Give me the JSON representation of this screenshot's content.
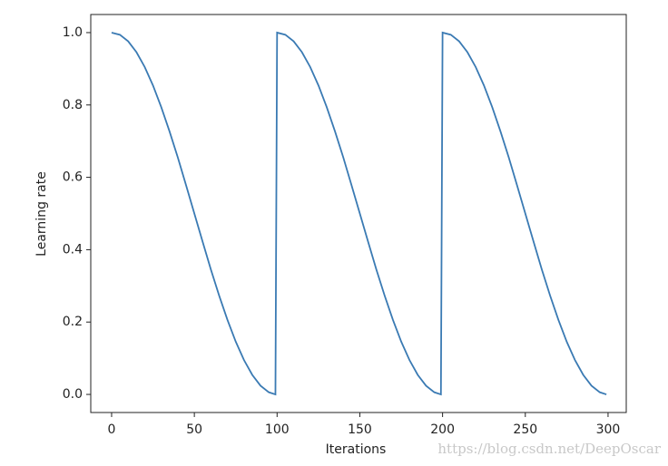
{
  "chart_data": {
    "type": "line",
    "xlabel": "Iterations",
    "ylabel": "Learning rate",
    "annotation": "https://blog.csdn.net/DeepOscar",
    "xlim": [
      -12.6,
      311
    ],
    "ylim": [
      -0.05,
      1.05
    ],
    "xticks": [
      0,
      50,
      100,
      150,
      200,
      250,
      300
    ],
    "yticks": [
      {
        "value": 0,
        "label": "0.0"
      },
      0.2,
      0.4,
      0.6,
      0.8,
      {
        "value": 1,
        "label": "1.0"
      }
    ],
    "series": [
      {
        "color": "#3a7ab3",
        "x": [
          0,
          5,
          10,
          15,
          20,
          25,
          30,
          35,
          40,
          45,
          50,
          55,
          60,
          65,
          70,
          75,
          80,
          85,
          90,
          95,
          99,
          100,
          105,
          110,
          115,
          120,
          125,
          130,
          135,
          140,
          145,
          150,
          155,
          160,
          165,
          170,
          175,
          180,
          185,
          190,
          195,
          199,
          200,
          205,
          210,
          215,
          220,
          225,
          230,
          235,
          240,
          245,
          250,
          255,
          260,
          265,
          270,
          275,
          280,
          285,
          290,
          295,
          299
        ],
        "values": [
          1,
          0.994,
          0.976,
          0.946,
          0.905,
          0.854,
          0.794,
          0.727,
          0.655,
          0.578,
          0.5,
          0.422,
          0.345,
          0.273,
          0.206,
          0.146,
          0.095,
          0.054,
          0.024,
          0.006,
          0,
          1,
          0.994,
          0.976,
          0.946,
          0.905,
          0.854,
          0.794,
          0.727,
          0.655,
          0.578,
          0.5,
          0.422,
          0.345,
          0.273,
          0.206,
          0.146,
          0.095,
          0.054,
          0.024,
          0.006,
          0,
          1,
          0.994,
          0.976,
          0.946,
          0.905,
          0.854,
          0.794,
          0.727,
          0.655,
          0.578,
          0.5,
          0.422,
          0.345,
          0.273,
          0.206,
          0.146,
          0.095,
          0.054,
          0.024,
          0.006,
          0
        ]
      }
    ]
  }
}
